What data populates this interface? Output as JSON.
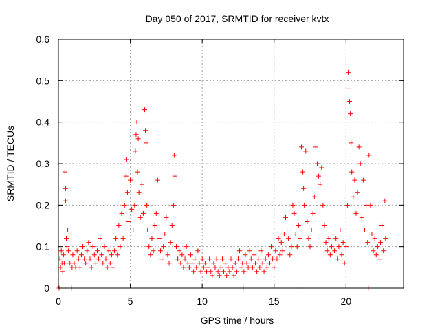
{
  "chart_data": {
    "type": "scatter",
    "title": "Day 050 of 2017, SRMTID for receiver kvtx",
    "xlabel": "GPS time / hours",
    "ylabel": "SRMTID / TECUs",
    "xlim": [
      0,
      24
    ],
    "ylim": [
      0,
      0.6
    ],
    "xticks": [
      0,
      5,
      10,
      15,
      20
    ],
    "xtick_labels": [
      "0",
      "5",
      "10",
      "15",
      "20"
    ],
    "yticks": [
      0,
      0.1,
      0.2,
      0.3,
      0.4,
      0.5,
      0.6
    ],
    "ytick_labels": [
      "0",
      "0.1",
      "0.2",
      "0.3",
      "0.4",
      "0.5",
      "0.6"
    ],
    "grid": true,
    "marker": "plus",
    "series": [
      {
        "name": "SRMTID",
        "color": "#ff0000",
        "points": [
          [
            0.05,
            0.0
          ],
          [
            0.1,
            0.07
          ],
          [
            0.15,
            0.05
          ],
          [
            0.2,
            0.09
          ],
          [
            0.25,
            0.06
          ],
          [
            0.3,
            0.04
          ],
          [
            0.35,
            0.08
          ],
          [
            0.4,
            0.06
          ],
          [
            0.45,
            0.28
          ],
          [
            0.5,
            0.21
          ],
          [
            0.5,
            0.24
          ],
          [
            0.55,
            0.12
          ],
          [
            0.6,
            0.1
          ],
          [
            0.65,
            0.14
          ],
          [
            0.7,
            0.09
          ],
          [
            0.8,
            0.06
          ],
          [
            0.9,
            0.0
          ],
          [
            0.95,
            0.05
          ],
          [
            1.0,
            0.08
          ],
          [
            1.1,
            0.06
          ],
          [
            1.2,
            0.05
          ],
          [
            1.3,
            0.09
          ],
          [
            1.4,
            0.07
          ],
          [
            1.5,
            0.05
          ],
          [
            1.6,
            0.08
          ],
          [
            1.7,
            0.1
          ],
          [
            1.8,
            0.07
          ],
          [
            1.9,
            0.06
          ],
          [
            2.0,
            0.09
          ],
          [
            2.1,
            0.11
          ],
          [
            2.2,
            0.07
          ],
          [
            2.3,
            0.05
          ],
          [
            2.4,
            0.1
          ],
          [
            2.5,
            0.08
          ],
          [
            2.6,
            0.06
          ],
          [
            2.7,
            0.09
          ],
          [
            2.8,
            0.07
          ],
          [
            2.9,
            0.12
          ],
          [
            3.0,
            0.08
          ],
          [
            3.1,
            0.06
          ],
          [
            3.2,
            0.1
          ],
          [
            3.3,
            0.07
          ],
          [
            3.4,
            0.05
          ],
          [
            3.5,
            0.09
          ],
          [
            3.6,
            0.06
          ],
          [
            3.7,
            0.08
          ],
          [
            3.8,
            0.05
          ],
          [
            3.9,
            0.09
          ],
          [
            4.0,
            0.12
          ],
          [
            4.1,
            0.08
          ],
          [
            4.2,
            0.15
          ],
          [
            4.3,
            0.1
          ],
          [
            4.4,
            0.18
          ],
          [
            4.5,
            0.12
          ],
          [
            4.6,
            0.2
          ],
          [
            4.7,
            0.27
          ],
          [
            4.75,
            0.31
          ],
          [
            4.8,
            0.23
          ],
          [
            4.9,
            0.16
          ],
          [
            5.0,
            0.26
          ],
          [
            5.1,
            0.19
          ],
          [
            5.2,
            0.14
          ],
          [
            5.3,
            0.2
          ],
          [
            5.35,
            0.33
          ],
          [
            5.4,
            0.37
          ],
          [
            5.45,
            0.4
          ],
          [
            5.5,
            0.28
          ],
          [
            5.55,
            0.36
          ],
          [
            5.6,
            0.23
          ],
          [
            5.7,
            0.17
          ],
          [
            5.8,
            0.25
          ],
          [
            5.9,
            0.18
          ],
          [
            6.0,
            0.43
          ],
          [
            6.05,
            0.38
          ],
          [
            6.1,
            0.35
          ],
          [
            6.15,
            0.2
          ],
          [
            6.2,
            0.14
          ],
          [
            6.3,
            0.1
          ],
          [
            6.4,
            0.08
          ],
          [
            6.5,
            0.12
          ],
          [
            6.6,
            0.09
          ],
          [
            6.7,
            0.15
          ],
          [
            6.8,
            0.18
          ],
          [
            6.9,
            0.26
          ],
          [
            7.0,
            0.12
          ],
          [
            7.1,
            0.09
          ],
          [
            7.2,
            0.07
          ],
          [
            7.3,
            0.1
          ],
          [
            7.4,
            0.13
          ],
          [
            7.5,
            0.17
          ],
          [
            7.6,
            0.08
          ],
          [
            7.7,
            0.06
          ],
          [
            7.8,
            0.11
          ],
          [
            7.9,
            0.15
          ],
          [
            8.0,
            0.2
          ],
          [
            8.05,
            0.32
          ],
          [
            8.1,
            0.27
          ],
          [
            8.2,
            0.1
          ],
          [
            8.3,
            0.07
          ],
          [
            8.4,
            0.09
          ],
          [
            8.5,
            0.06
          ],
          [
            8.6,
            0.08
          ],
          [
            8.7,
            0.05
          ],
          [
            8.8,
            0.07
          ],
          [
            8.9,
            0.1
          ],
          [
            9.0,
            0.06
          ],
          [
            9.1,
            0.05
          ],
          [
            9.2,
            0.08
          ],
          [
            9.3,
            0.06
          ],
          [
            9.4,
            0.04
          ],
          [
            9.5,
            0.07
          ],
          [
            9.6,
            0.05
          ],
          [
            9.7,
            0.09
          ],
          [
            9.8,
            0.06
          ],
          [
            9.9,
            0.04
          ],
          [
            10.0,
            0.07
          ],
          [
            10.1,
            0.05
          ],
          [
            10.2,
            0.06
          ],
          [
            10.3,
            0.04
          ],
          [
            10.4,
            0.05
          ],
          [
            10.5,
            0.07
          ],
          [
            10.6,
            0.04
          ],
          [
            10.7,
            0.03
          ],
          [
            10.8,
            0.06
          ],
          [
            10.9,
            0.05
          ],
          [
            11.0,
            0.07
          ],
          [
            11.1,
            0.04
          ],
          [
            11.2,
            0.03
          ],
          [
            11.3,
            0.05
          ],
          [
            11.4,
            0.07
          ],
          [
            11.5,
            0.04
          ],
          [
            11.6,
            0.06
          ],
          [
            11.7,
            0.03
          ],
          [
            11.8,
            0.05
          ],
          [
            11.9,
            0.04
          ],
          [
            12.0,
            0.07
          ],
          [
            12.1,
            0.05
          ],
          [
            12.2,
            0.03
          ],
          [
            12.3,
            0.06
          ],
          [
            12.4,
            0.04
          ],
          [
            12.5,
            0.07
          ],
          [
            12.6,
            0.09
          ],
          [
            12.7,
            0.05
          ],
          [
            12.8,
            0.06
          ],
          [
            12.85,
            0.0
          ],
          [
            12.9,
            0.04
          ],
          [
            13.0,
            0.08
          ],
          [
            13.1,
            0.06
          ],
          [
            13.2,
            0.05
          ],
          [
            13.3,
            0.09
          ],
          [
            13.4,
            0.07
          ],
          [
            13.5,
            0.05
          ],
          [
            13.6,
            0.08
          ],
          [
            13.7,
            0.06
          ],
          [
            13.8,
            0.04
          ],
          [
            13.9,
            0.07
          ],
          [
            14.0,
            0.05
          ],
          [
            14.1,
            0.09
          ],
          [
            14.2,
            0.06
          ],
          [
            14.3,
            0.04
          ],
          [
            14.4,
            0.07
          ],
          [
            14.5,
            0.05
          ],
          [
            14.6,
            0.08
          ],
          [
            14.7,
            0.06
          ],
          [
            14.8,
            0.1
          ],
          [
            14.9,
            0.07
          ],
          [
            15.0,
            0.05
          ],
          [
            15.1,
            0.09
          ],
          [
            15.2,
            0.07
          ],
          [
            15.3,
            0.12
          ],
          [
            15.4,
            0.08
          ],
          [
            15.5,
            0.11
          ],
          [
            15.6,
            0.09
          ],
          [
            15.7,
            0.13
          ],
          [
            15.8,
            0.17
          ],
          [
            15.9,
            0.14
          ],
          [
            16.0,
            0.12
          ],
          [
            16.1,
            0.08
          ],
          [
            16.2,
            0.1
          ],
          [
            16.3,
            0.2
          ],
          [
            16.4,
            0.18
          ],
          [
            16.5,
            0.13
          ],
          [
            16.6,
            0.1
          ],
          [
            16.7,
            0.15
          ],
          [
            16.8,
            0.12
          ],
          [
            16.9,
            0.34
          ],
          [
            16.95,
            0.0
          ],
          [
            17.0,
            0.28
          ],
          [
            17.05,
            0.24
          ],
          [
            17.1,
            0.2
          ],
          [
            17.2,
            0.33
          ],
          [
            17.3,
            0.16
          ],
          [
            17.4,
            0.12
          ],
          [
            17.5,
            0.1
          ],
          [
            17.6,
            0.14
          ],
          [
            17.7,
            0.18
          ],
          [
            17.8,
            0.22
          ],
          [
            17.9,
            0.34
          ],
          [
            18.0,
            0.3
          ],
          [
            18.1,
            0.27
          ],
          [
            18.2,
            0.25
          ],
          [
            18.3,
            0.29
          ],
          [
            18.4,
            0.2
          ],
          [
            18.5,
            0.15
          ],
          [
            18.6,
            0.11
          ],
          [
            18.7,
            0.09
          ],
          [
            18.8,
            0.12
          ],
          [
            18.9,
            0.08
          ],
          [
            19.0,
            0.1
          ],
          [
            19.1,
            0.13
          ],
          [
            19.2,
            0.09
          ],
          [
            19.3,
            0.12
          ],
          [
            19.4,
            0.07
          ],
          [
            19.5,
            0.1
          ],
          [
            19.6,
            0.14
          ],
          [
            19.7,
            0.08
          ],
          [
            19.8,
            0.11
          ],
          [
            19.9,
            0.06
          ],
          [
            20.0,
            0.1
          ],
          [
            20.1,
            0.2
          ],
          [
            20.15,
            0.52
          ],
          [
            20.2,
            0.48
          ],
          [
            20.25,
            0.45
          ],
          [
            20.3,
            0.42
          ],
          [
            20.35,
            0.35
          ],
          [
            20.4,
            0.28
          ],
          [
            20.5,
            0.22
          ],
          [
            20.6,
            0.26
          ],
          [
            20.7,
            0.18
          ],
          [
            20.8,
            0.23
          ],
          [
            20.9,
            0.34
          ],
          [
            21.0,
            0.3
          ],
          [
            21.1,
            0.17
          ],
          [
            21.2,
            0.26
          ],
          [
            21.3,
            0.14
          ],
          [
            21.4,
            0.2
          ],
          [
            21.5,
            0.11
          ],
          [
            21.55,
            0.0
          ],
          [
            21.6,
            0.32
          ],
          [
            21.7,
            0.2
          ],
          [
            21.8,
            0.13
          ],
          [
            21.9,
            0.09
          ],
          [
            22.0,
            0.12
          ],
          [
            22.1,
            0.08
          ],
          [
            22.2,
            0.1
          ],
          [
            22.3,
            0.07
          ],
          [
            22.4,
            0.11
          ],
          [
            22.5,
            0.15
          ],
          [
            22.6,
            0.09
          ],
          [
            22.7,
            0.21
          ],
          [
            22.75,
            0.12
          ]
        ]
      }
    ]
  }
}
